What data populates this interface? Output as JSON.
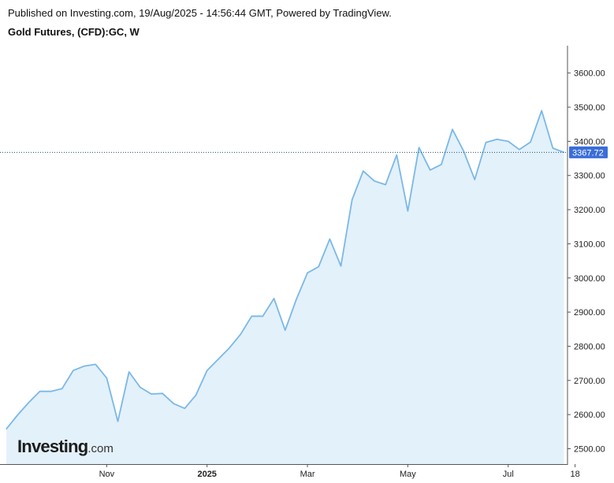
{
  "header": {
    "published": "Published on Investing.com, 19/Aug/2025 - 14:56:44 GMT, Powered by TradingView.",
    "title": "Gold Futures, (CFD):GC, W"
  },
  "colors": {
    "line": "#7ab8e8",
    "fill": "#e3f1fb",
    "last_price_badge": "#3a6ed8",
    "last_price_line": "#1b4f72"
  },
  "logo": {
    "name": "Investing",
    "suffix": ".com"
  },
  "chart_data": {
    "type": "area",
    "title": "Gold Futures, (CFD):GC, W",
    "xlabel": "",
    "ylabel": "",
    "ylim": [
      2455,
      3680
    ],
    "y_ticks": [
      2500,
      2600,
      2700,
      2800,
      2900,
      3000,
      3100,
      3200,
      3300,
      3400,
      3500,
      3600
    ],
    "y_tick_labels": [
      "2500.00",
      "2600.00",
      "2700.00",
      "2800.00",
      "2900.00",
      "3000.00",
      "3100.00",
      "3200.00",
      "3300.00",
      "3400.00",
      "3500.00",
      "3600.00"
    ],
    "x_labels": [
      {
        "label": "Nov",
        "index": 9,
        "bold": false
      },
      {
        "label": "2025",
        "index": 18,
        "bold": true
      },
      {
        "label": "Mar",
        "index": 27,
        "bold": false
      },
      {
        "label": "May",
        "index": 36,
        "bold": false
      },
      {
        "label": "Jul",
        "index": 45,
        "bold": false
      },
      {
        "label": "18",
        "index": 51,
        "bold": false
      }
    ],
    "grid": false,
    "last_price": 3367.72,
    "last_price_label": "3367.72",
    "series": [
      {
        "values": [
          2558,
          2598,
          2635,
          2668,
          2668,
          2676,
          2729,
          2742,
          2747,
          2707,
          2580,
          2725,
          2680,
          2660,
          2662,
          2632,
          2618,
          2657,
          2729,
          2762,
          2795,
          2835,
          2888,
          2888,
          2940,
          2847,
          2937,
          3015,
          3033,
          3114,
          3035,
          3229,
          3313,
          3284,
          3273,
          3360,
          3196,
          3382,
          3316,
          3332,
          3435,
          3372,
          3288,
          3397,
          3406,
          3400,
          3376,
          3398,
          3490,
          3380,
          3367.72
        ]
      }
    ]
  }
}
